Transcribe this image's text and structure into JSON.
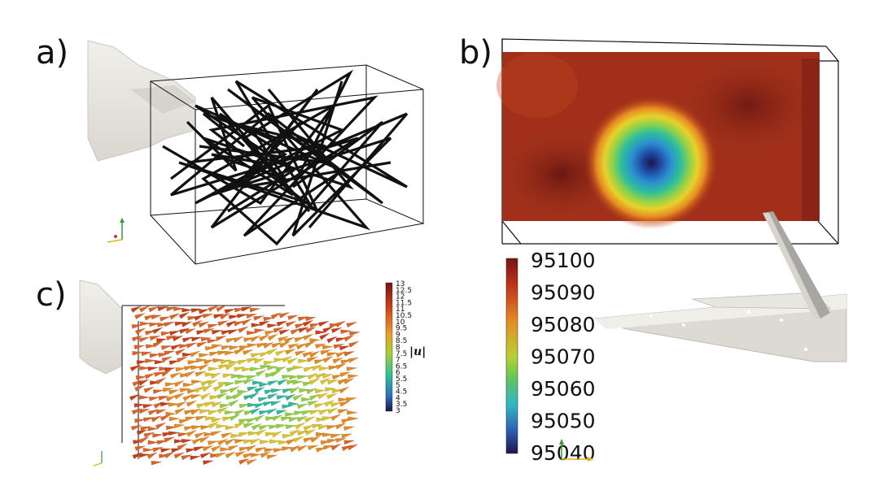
{
  "panels": {
    "a": {
      "label": "a)"
    },
    "b": {
      "label": "b)"
    },
    "c": {
      "label": "c)"
    }
  },
  "colorbar_b": {
    "ticks": [
      "95100",
      "95090",
      "95080",
      "95070",
      "95060",
      "95050",
      "95040"
    ],
    "range": [
      95040,
      95100
    ]
  },
  "colorbar_c": {
    "title": "|u|",
    "ticks": [
      "13",
      "12.5",
      "12",
      "11.5",
      "11",
      "10.5",
      "10",
      "9.5",
      "9",
      "8.5",
      "8",
      "7.5",
      "7",
      "6.5",
      "6",
      "5.5",
      "5",
      "4.5",
      "4",
      "3.5",
      "3"
    ],
    "range": [
      3,
      13
    ]
  },
  "colors": {
    "high": "#7a1212",
    "mid_high": "#e2571f",
    "mid": "#e8d12a",
    "mid_low": "#2fbf9a",
    "low": "#1b1747",
    "geometry": "#e3e1da",
    "frame": "#111111"
  }
}
